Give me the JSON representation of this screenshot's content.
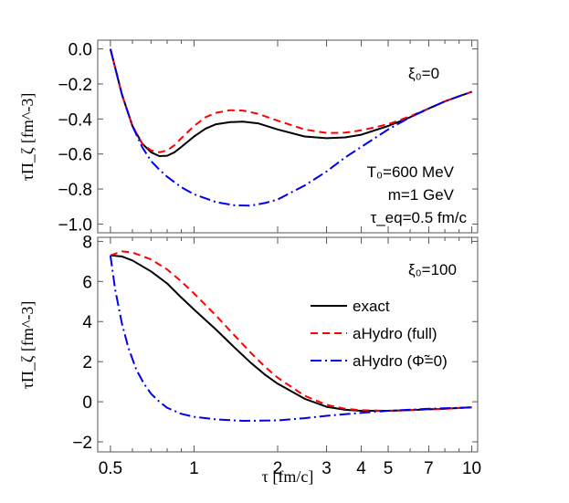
{
  "chart_data": [
    {
      "type": "line",
      "panel": "top",
      "ylabel": "τΠ_ζ [fm^-3]",
      "xscale": "log",
      "xlim": [
        0.45,
        10.5
      ],
      "ylim": [
        -1.05,
        0.05
      ],
      "yticks": [
        "0.0",
        "-0.2",
        "-0.4",
        "-0.6",
        "-0.8",
        "-1.0"
      ],
      "ytick_values": [
        0.0,
        -0.2,
        -0.4,
        -0.6,
        -0.8,
        -1.0
      ],
      "annotations": {
        "xi": "ξ₀=0",
        "T0": "T₀=600 MeV",
        "m": "m=1 GeV",
        "tau_eq": "τ_eq=0.5 fm/c"
      },
      "series": [
        {
          "name": "exact",
          "color": "#000000",
          "dash": "solid",
          "x": [
            0.5,
            0.55,
            0.6,
            0.65,
            0.7,
            0.75,
            0.8,
            0.85,
            0.9,
            1.0,
            1.1,
            1.2,
            1.35,
            1.5,
            1.7,
            2.0,
            2.5,
            3.0,
            3.5,
            4.0,
            5.0,
            6.0,
            7.0,
            8.0,
            9.0,
            10.0
          ],
          "y": [
            0.0,
            -0.26,
            -0.44,
            -0.54,
            -0.59,
            -0.612,
            -0.61,
            -0.59,
            -0.56,
            -0.5,
            -0.455,
            -0.43,
            -0.418,
            -0.415,
            -0.425,
            -0.46,
            -0.5,
            -0.51,
            -0.505,
            -0.49,
            -0.44,
            -0.39,
            -0.34,
            -0.3,
            -0.27,
            -0.245
          ]
        },
        {
          "name": "aHydro (full)",
          "color": "#ff0000",
          "dash": "dashed",
          "x": [
            0.5,
            0.55,
            0.6,
            0.65,
            0.7,
            0.75,
            0.8,
            0.85,
            0.9,
            1.0,
            1.1,
            1.2,
            1.35,
            1.5,
            1.7,
            2.0,
            2.5,
            3.0,
            3.5,
            4.0,
            5.0,
            6.0,
            7.0,
            8.0,
            9.0,
            10.0
          ],
          "y": [
            0.0,
            -0.26,
            -0.44,
            -0.54,
            -0.58,
            -0.59,
            -0.58,
            -0.55,
            -0.51,
            -0.44,
            -0.39,
            -0.365,
            -0.35,
            -0.352,
            -0.37,
            -0.41,
            -0.46,
            -0.48,
            -0.478,
            -0.465,
            -0.43,
            -0.385,
            -0.34,
            -0.3,
            -0.27,
            -0.245
          ]
        },
        {
          "name": "aHydro (Φ̃=0)",
          "color": "#0000ee",
          "dash": "dashdot",
          "x": [
            0.5,
            0.55,
            0.6,
            0.65,
            0.7,
            0.75,
            0.8,
            0.9,
            1.0,
            1.2,
            1.4,
            1.6,
            1.8,
            2.0,
            2.5,
            3.0,
            3.5,
            4.0,
            5.0,
            6.0,
            7.0,
            8.0,
            9.0,
            10.0
          ],
          "y": [
            0.0,
            -0.26,
            -0.44,
            -0.56,
            -0.64,
            -0.69,
            -0.73,
            -0.79,
            -0.83,
            -0.875,
            -0.893,
            -0.895,
            -0.88,
            -0.86,
            -0.78,
            -0.7,
            -0.62,
            -0.56,
            -0.46,
            -0.39,
            -0.34,
            -0.3,
            -0.27,
            -0.245
          ]
        }
      ]
    },
    {
      "type": "line",
      "panel": "bottom",
      "ylabel": "τΠ_ζ [fm^-3]",
      "xlabel": "τ [fm/c]",
      "xscale": "log",
      "xlim": [
        0.45,
        10.5
      ],
      "ylim": [
        -2.5,
        8.2
      ],
      "yticks": [
        "8",
        "6",
        "4",
        "2",
        "0",
        "-2"
      ],
      "ytick_values": [
        8,
        6,
        4,
        2,
        0,
        -2
      ],
      "xticks": [
        "0.5",
        "1",
        "2",
        "3",
        "4",
        "5",
        "7",
        "10"
      ],
      "xtick_values": [
        0.5,
        1,
        2,
        3,
        4,
        5,
        7,
        10
      ],
      "annotations": {
        "xi": "ξ₀=100"
      },
      "series": [
        {
          "name": "exact",
          "color": "#000000",
          "dash": "solid",
          "x": [
            0.5,
            0.55,
            0.6,
            0.7,
            0.8,
            0.9,
            1.0,
            1.2,
            1.4,
            1.6,
            1.8,
            2.0,
            2.5,
            3.0,
            3.5,
            4.0,
            5.0,
            6.0,
            7.0,
            8.0,
            10.0
          ],
          "y": [
            7.3,
            7.25,
            7.05,
            6.5,
            5.9,
            5.2,
            4.6,
            3.6,
            2.7,
            1.95,
            1.35,
            0.9,
            0.15,
            -0.25,
            -0.4,
            -0.45,
            -0.45,
            -0.42,
            -0.38,
            -0.35,
            -0.28
          ]
        },
        {
          "name": "aHydro (full)",
          "color": "#ff0000",
          "dash": "dashed",
          "x": [
            0.5,
            0.55,
            0.6,
            0.7,
            0.8,
            0.9,
            1.0,
            1.2,
            1.4,
            1.6,
            1.8,
            2.0,
            2.5,
            3.0,
            3.5,
            4.0,
            5.0,
            6.0,
            7.0,
            8.0,
            10.0
          ],
          "y": [
            7.3,
            7.5,
            7.45,
            7.1,
            6.6,
            6.0,
            5.4,
            4.3,
            3.3,
            2.45,
            1.75,
            1.2,
            0.3,
            -0.15,
            -0.35,
            -0.42,
            -0.45,
            -0.42,
            -0.38,
            -0.35,
            -0.28
          ]
        },
        {
          "name": "aHydro (Φ̃=0)",
          "color": "#0000ee",
          "dash": "dashdot",
          "x": [
            0.5,
            0.52,
            0.55,
            0.58,
            0.62,
            0.66,
            0.7,
            0.75,
            0.8,
            0.9,
            1.0,
            1.2,
            1.5,
            2.0,
            2.5,
            3.0,
            4.0,
            5.0,
            7.0,
            10.0
          ],
          "y": [
            7.3,
            5.6,
            3.9,
            2.7,
            1.6,
            0.9,
            0.4,
            0.0,
            -0.3,
            -0.6,
            -0.75,
            -0.88,
            -0.95,
            -0.93,
            -0.82,
            -0.7,
            -0.55,
            -0.45,
            -0.35,
            -0.28
          ]
        }
      ]
    }
  ],
  "legend": {
    "items": [
      {
        "label": "exact",
        "color": "#000000",
        "dash": "solid"
      },
      {
        "label": "aHydro (full)",
        "color": "#ff0000",
        "dash": "dashed"
      },
      {
        "label": "aHydro (Φ̃=0)",
        "color": "#0000ee",
        "dash": "dashdot"
      }
    ]
  }
}
